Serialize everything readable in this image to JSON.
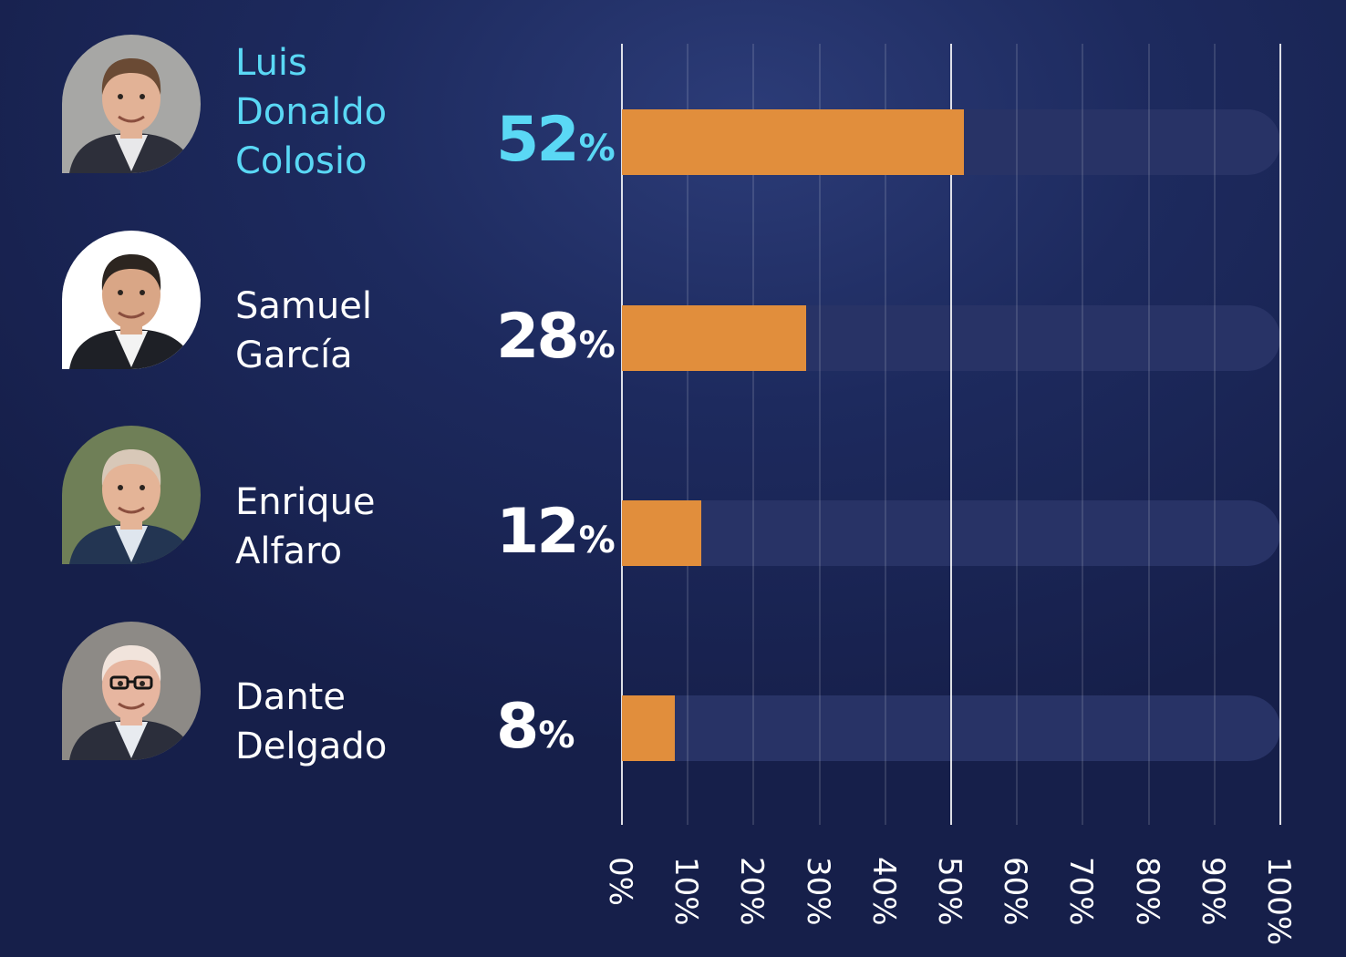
{
  "chart_data": {
    "type": "bar",
    "orientation": "horizontal",
    "categories": [
      "Luis Donaldo Colosio",
      "Samuel García",
      "Enrique Alfaro",
      "Dante Delgado"
    ],
    "values": [
      52,
      28,
      12,
      8
    ],
    "value_labels": [
      {
        "number": "52",
        "sign": "%"
      },
      {
        "number": "28",
        "sign": "%"
      },
      {
        "number": "12",
        "sign": "%"
      },
      {
        "number": "8",
        "sign": "%"
      }
    ],
    "name_lines": [
      [
        "Luis",
        "Donaldo",
        "Colosio"
      ],
      [
        "Samuel",
        "García"
      ],
      [
        "Enrique",
        "Alfaro"
      ],
      [
        "Dante",
        "Delgado"
      ]
    ],
    "highlight_index": 0,
    "avatars": [
      "avatar-photo",
      "avatar-photo",
      "avatar-photo",
      "avatar-photo"
    ],
    "xlim": [
      0,
      100
    ],
    "xticks": [
      "0%",
      "10%",
      "20%",
      "30%",
      "40%",
      "50%",
      "60%",
      "70%",
      "80%",
      "90%",
      "100%"
    ],
    "major_gridlines": [
      0,
      50,
      100
    ],
    "grid": true,
    "title": "",
    "xlabel": "",
    "ylabel": "",
    "colors": {
      "bar": "#e18e3c",
      "track": "#283366",
      "highlight_text": "#5ad8f5",
      "text": "#ffffff",
      "background": "#1d2a5e"
    }
  }
}
